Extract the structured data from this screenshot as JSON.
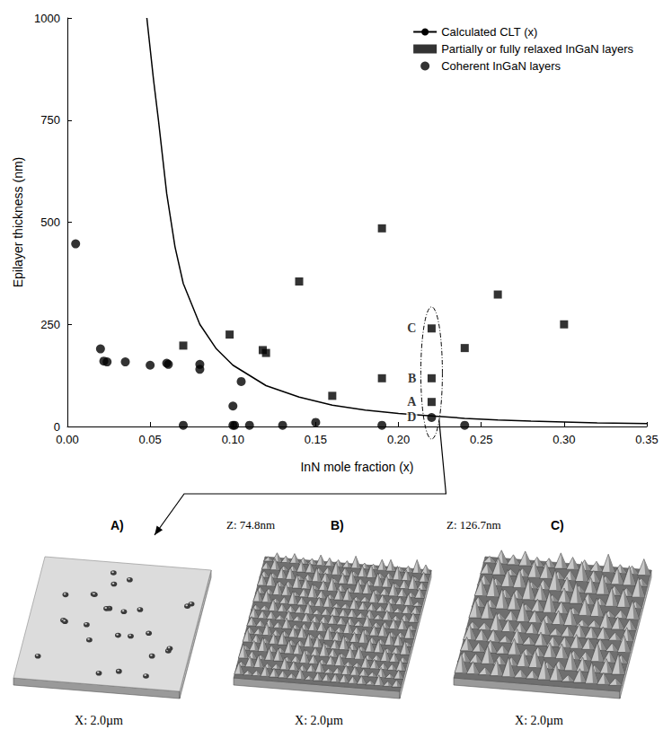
{
  "chart_data": {
    "type": "scatter",
    "x_label": "InN mole fraction (x)",
    "y_label": "Epilayer thickness (nm)",
    "xlim": [
      0,
      0.35
    ],
    "xticks": [
      {
        "value": 0,
        "label": "0.00"
      },
      0.05,
      {
        "value": 0.1,
        "label": "0.10"
      },
      0.15,
      {
        "value": 0.2,
        "label": "0.20"
      },
      0.25,
      {
        "value": 0.3,
        "label": "0.30"
      },
      0.35
    ],
    "ylim": [
      0,
      1000
    ],
    "yticks": [
      0,
      250,
      500,
      750,
      1000
    ],
    "grid": false,
    "legend": "upper right",
    "series": [
      {
        "name": "Calculated CLT (x)",
        "type": "line",
        "color": "#000000",
        "line_style": "solid",
        "x": [
          0.048,
          0.052,
          0.055,
          0.06,
          0.065,
          0.07,
          0.08,
          0.09,
          0.1,
          0.12,
          0.14,
          0.16,
          0.18,
          0.2,
          0.22,
          0.24,
          0.26,
          0.28,
          0.3,
          0.32,
          0.35
        ],
        "values": [
          1000,
          850,
          750,
          570,
          440,
          350,
          250,
          190,
          150,
          100,
          72,
          52,
          40,
          32,
          26,
          20,
          16,
          13,
          11,
          9,
          7
        ]
      },
      {
        "name": "Partially or fully relaxed InGaN layers",
        "type": "scatter",
        "marker": "square",
        "color": "#000000",
        "x": [
          0.07,
          0.098,
          0.118,
          0.12,
          0.14,
          0.16,
          0.19,
          0.19,
          0.22,
          0.22,
          0.22,
          0.24,
          0.26,
          0.3
        ],
        "values": [
          198,
          225,
          187,
          180,
          355,
          75,
          485,
          118,
          240,
          118,
          60,
          192,
          323,
          250
        ]
      },
      {
        "name": "Coherent InGaN layers",
        "type": "scatter",
        "marker": "circle",
        "color": "#000000",
        "x": [
          0.005,
          0.02,
          0.022,
          0.024,
          0.035,
          0.05,
          0.06,
          0.061,
          0.08,
          0.08,
          0.07,
          0.1,
          0.1,
          0.101,
          0.105,
          0.11,
          0.13,
          0.15,
          0.19,
          0.22,
          0.24
        ],
        "values": [
          447,
          190,
          160,
          158,
          158,
          150,
          155,
          152,
          152,
          140,
          3,
          50,
          3,
          3,
          110,
          3,
          3,
          10,
          3,
          22,
          3
        ]
      }
    ],
    "annotations": [
      {
        "text": "C",
        "x": 0.22,
        "y": 240
      },
      {
        "text": "B",
        "x": 0.22,
        "y": 118
      },
      {
        "text": "A",
        "x": 0.22,
        "y": 60
      },
      {
        "text": "D",
        "x": 0.22,
        "y": 22
      }
    ]
  },
  "panels": [
    {
      "label": "A)",
      "x_size": "X: 2.0µm"
    },
    {
      "label": "B)",
      "z_size": "Z: 74.8nm",
      "x_size": "X: 2.0µm"
    },
    {
      "label": "C)",
      "z_size": "Z: 126.7nm",
      "x_size": "X: 2.0µm"
    }
  ]
}
